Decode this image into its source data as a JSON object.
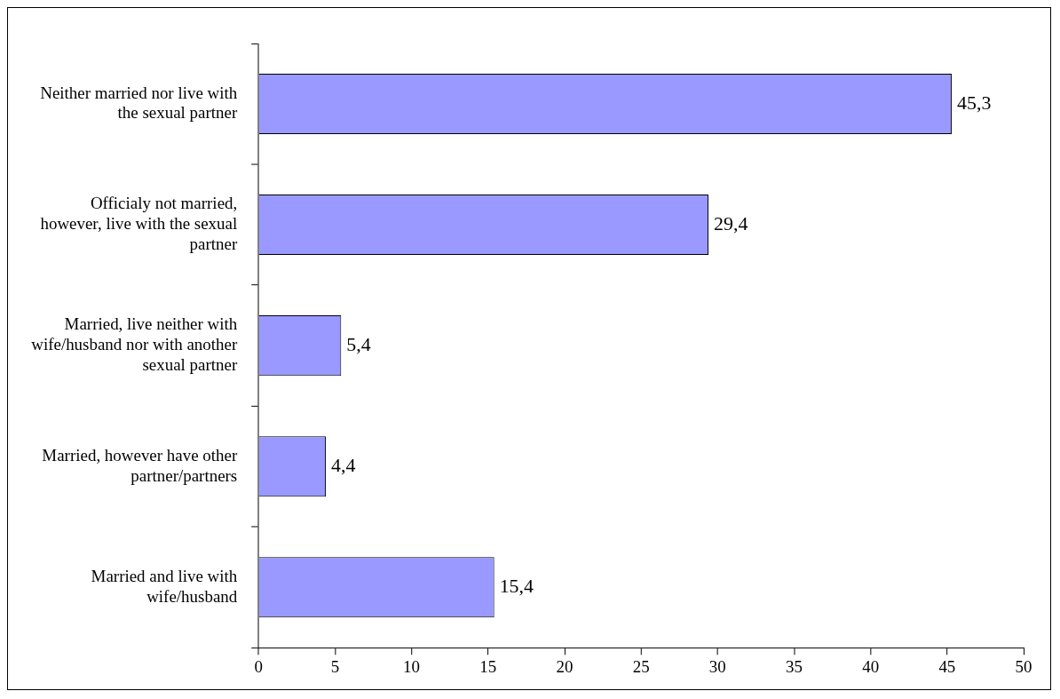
{
  "chart_data": {
    "type": "bar",
    "orientation": "horizontal",
    "categories": [
      "Neither married nor live with the sexual partner",
      "Officialy not married, however, live with the sexual partner",
      "Married, live neither with wife/husband nor with another sexual partner",
      "Married, however have other partner/partners",
      "Married and live with wife/husband"
    ],
    "values": [
      45.3,
      29.4,
      5.4,
      4.4,
      15.4
    ],
    "value_labels": [
      "45,3",
      "29,4",
      "5,4",
      "4,4",
      "15,4"
    ],
    "color": "#9999ff",
    "xlim": [
      0,
      50
    ],
    "xticks": [
      0,
      5,
      10,
      15,
      20,
      25,
      30,
      35,
      40,
      45,
      50
    ],
    "grid": false,
    "legend": false
  }
}
